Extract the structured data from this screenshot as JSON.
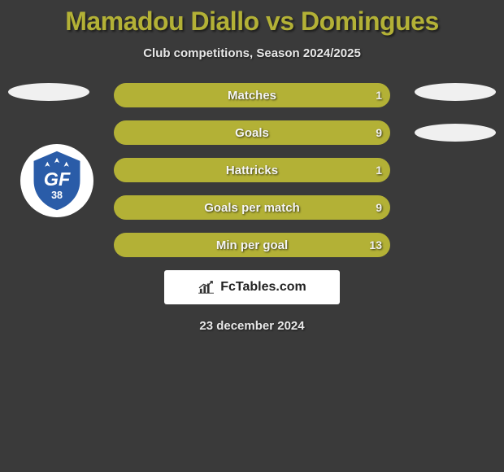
{
  "title": "Mamadou Diallo vs Domingues",
  "subtitle": "Club competitions, Season 2024/2025",
  "date": "23 december 2024",
  "colors": {
    "title_color": "#b3b136",
    "bar_fill": "#b3b136",
    "bar_bg": "#2b2b2b",
    "page_bg": "#3a3a3a",
    "text": "#e8e8e8"
  },
  "bars": [
    {
      "label": "Matches",
      "left": null,
      "right": "1",
      "fill_from": 0,
      "fill_to": 100
    },
    {
      "label": "Goals",
      "left": null,
      "right": "9",
      "fill_from": 0,
      "fill_to": 100
    },
    {
      "label": "Hattricks",
      "left": null,
      "right": "1",
      "fill_from": 0,
      "fill_to": 100
    },
    {
      "label": "Goals per match",
      "left": null,
      "right": "9",
      "fill_from": 0,
      "fill_to": 100
    },
    {
      "label": "Min per goal",
      "left": null,
      "right": "13",
      "fill_from": 0,
      "fill_to": 100
    }
  ],
  "logo_text": "FcTables.com",
  "club_badge": {
    "text": "GF",
    "sub": "38",
    "primary": "#2a5ca8",
    "secondary": "#ffffff"
  }
}
